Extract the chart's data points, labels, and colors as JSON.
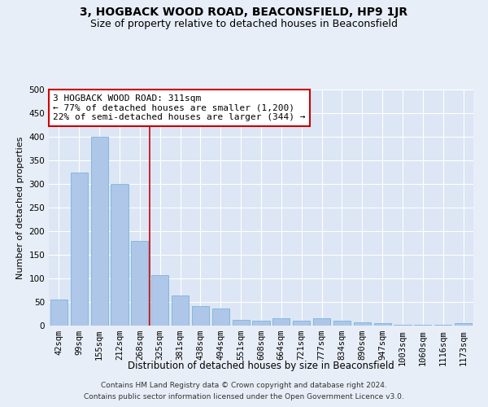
{
  "title": "3, HOGBACK WOOD ROAD, BEACONSFIELD, HP9 1JR",
  "subtitle": "Size of property relative to detached houses in Beaconsfield",
  "xlabel": "Distribution of detached houses by size in Beaconsfield",
  "ylabel": "Number of detached properties",
  "footer_line1": "Contains HM Land Registry data © Crown copyright and database right 2024.",
  "footer_line2": "Contains public sector information licensed under the Open Government Licence v3.0.",
  "categories": [
    "42sqm",
    "99sqm",
    "155sqm",
    "212sqm",
    "268sqm",
    "325sqm",
    "381sqm",
    "438sqm",
    "494sqm",
    "551sqm",
    "608sqm",
    "664sqm",
    "721sqm",
    "777sqm",
    "834sqm",
    "890sqm",
    "947sqm",
    "1003sqm",
    "1060sqm",
    "1116sqm",
    "1173sqm"
  ],
  "values": [
    55,
    325,
    400,
    300,
    180,
    107,
    63,
    42,
    37,
    12,
    10,
    15,
    10,
    15,
    10,
    7,
    5,
    2,
    1,
    1,
    6
  ],
  "bar_color": "#aec6e8",
  "bar_edge_color": "#6aaed6",
  "ylim": [
    0,
    500
  ],
  "yticks": [
    0,
    50,
    100,
    150,
    200,
    250,
    300,
    350,
    400,
    450,
    500
  ],
  "vline_x": 4.5,
  "vline_color": "#cc0000",
  "annotation_line1": "3 HOGBACK WOOD ROAD: 311sqm",
  "annotation_line2": "← 77% of detached houses are smaller (1,200)",
  "annotation_line3": "22% of semi-detached houses are larger (344) →",
  "annotation_box_color": "#ffffff",
  "annotation_edge_color": "#cc0000",
  "bg_color": "#e8eef7",
  "plot_bg_color": "#dce6f5",
  "grid_color": "#ffffff",
  "title_fontsize": 10,
  "subtitle_fontsize": 9,
  "ylabel_fontsize": 8,
  "xlabel_fontsize": 8.5,
  "tick_fontsize": 7.5,
  "annotation_fontsize": 8,
  "footer_fontsize": 6.5
}
